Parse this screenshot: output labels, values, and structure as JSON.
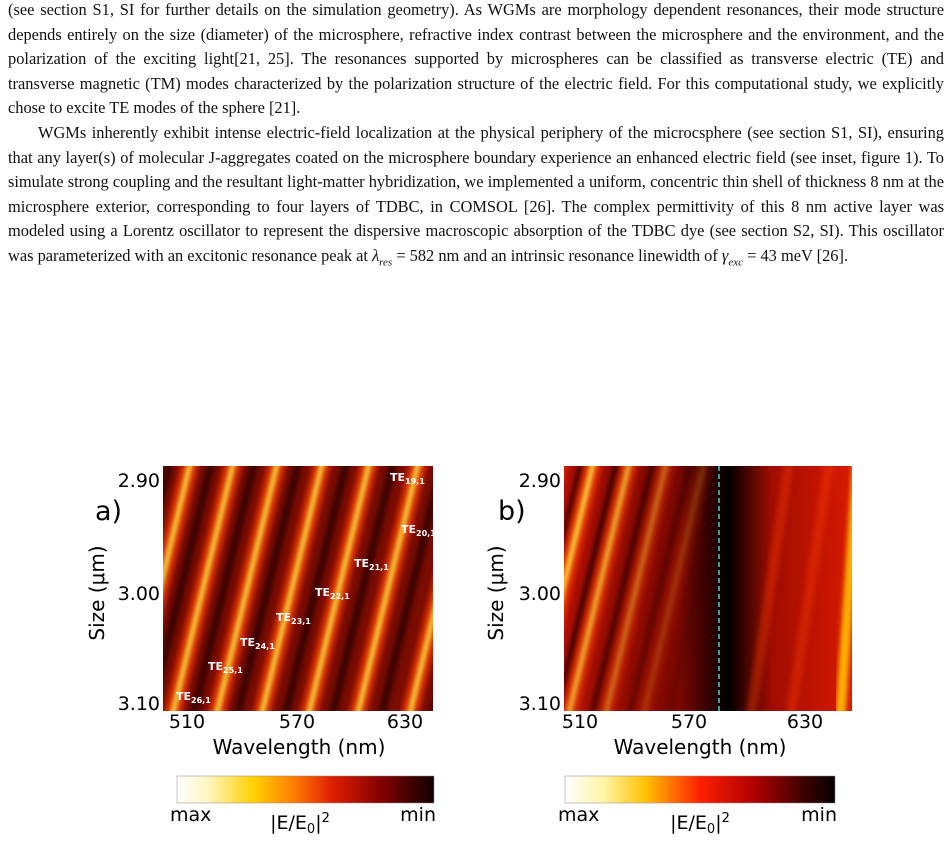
{
  "paragraphs": [
    {
      "text": "(see section S1, SI for further details on the simulation geometry). As WGMs are morphology dependent resonances, their mode structure depends entirely on the size (diameter) of the microsphere, refractive index contrast between the microsphere and the environment, and the polarization of the exciting light[21, 25]. The resonances supported by microspheres can be classified as transverse electric (TE) and transverse magnetic (TM) modes characterized by the polarization structure of the electric field. For this computational study, we explicitly chose to excite TE modes of the sphere [21]."
    },
    {
      "segments": [
        {
          "text": "WGMs inherently exhibit intense electric-field localization at the physical periphery of the microcsphere (see section S1, SI), ensuring that any layer(s) of molecular J-aggregates coated on the microsphere boundary experience an enhanced electric field (see inset, figure 1). To simulate strong coupling and the resultant light-matter hybridization, we implemented a uniform, concentric thin shell of thickness 8 nm at the microsphere exterior, corresponding to four layers of TDBC, in COMSOL [26]. The complex permittivity of this 8 nm active layer was modeled using a Lorentz oscillator to represent the dispersive macroscopic absorption of the TDBC dye (see section S2, SI). This oscillator was parameterized with an excitonic resonance peak at "
        },
        {
          "symbol": "λ",
          "sub": "res"
        },
        {
          "text": " = 582 nm and an intrinsic resonance linewidth of "
        },
        {
          "symbol": "γ",
          "sub": "exc"
        },
        {
          "text": " = 43 meV [26]."
        }
      ]
    }
  ],
  "figure": {
    "panels": [
      {
        "label": "a)",
        "y_label": "Size (μm)",
        "x_label": "Wavelength (nm)",
        "yticks": [
          "2.90",
          "3.00",
          "3.10"
        ],
        "xticks": [
          "510",
          "570",
          "630"
        ],
        "mode_labels": [
          {
            "base": "TE",
            "sub": "19,1"
          },
          {
            "base": "TE",
            "sub": "20,1"
          },
          {
            "base": "TE",
            "sub": "21,1"
          },
          {
            "base": "TE",
            "sub": "22,1"
          },
          {
            "base": "TE",
            "sub": "23,1"
          },
          {
            "base": "TE",
            "sub": "24,1"
          },
          {
            "base": "TE",
            "sub": "25,1"
          },
          {
            "base": "TE",
            "sub": "26,1"
          }
        ],
        "colorbar": {
          "left_label": "max",
          "right_label": "min",
          "title": "|E/E",
          "title_sub": "0",
          "title_end": "|",
          "title_sup": "2"
        }
      },
      {
        "label": "b)",
        "y_label": "Size (μm)",
        "x_label": "Wavelength (nm)",
        "yticks": [
          "2.90",
          "3.00",
          "3.10"
        ],
        "xticks": [
          "510",
          "570",
          "630"
        ],
        "colorbar": {
          "left_label": "max",
          "right_label": "min",
          "title": "|E/E",
          "title_sub": "0",
          "title_end": "|",
          "title_sup": "2"
        }
      }
    ]
  }
}
